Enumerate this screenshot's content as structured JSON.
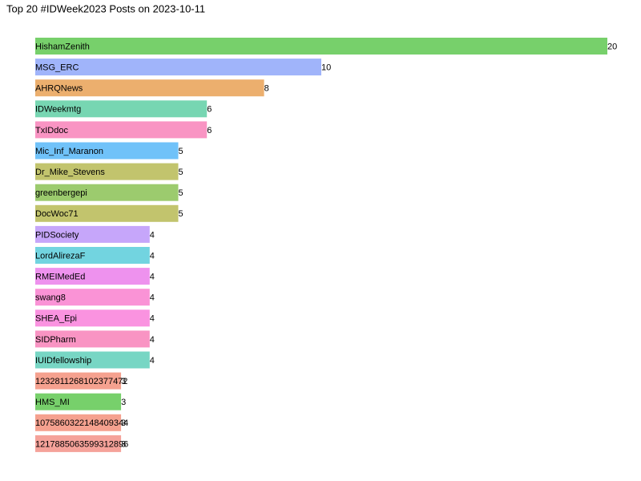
{
  "chart_data": {
    "type": "barh",
    "title": "Top 20 #IDWeek2023 Posts on 2023-10-11",
    "categories": [
      "HishamZenith",
      "MSG_ERC",
      "AHRQNews",
      "IDWeekmtg",
      "TxIDdoc",
      "Mic_Inf_Maranon",
      "Dr_Mike_Stevens",
      "greenbergepi",
      "DocWoc71",
      "PIDSociety",
      "LordAlirezaF",
      "RMEIMedEd",
      "swang8",
      "SHEA_Epi",
      "SIDPharm",
      "IUIDfellowship",
      "1232811268102377472",
      "HMS_MI",
      "1075860322148409344",
      "1217885063599312896"
    ],
    "values": [
      20,
      10,
      8,
      6,
      6,
      5,
      5,
      5,
      5,
      4,
      4,
      4,
      4,
      4,
      4,
      4,
      3,
      3,
      3,
      3
    ],
    "colors": [
      "#77d06b",
      "#a0b4fa",
      "#ecaf6e",
      "#77d6b2",
      "#f994c3",
      "#70c2f9",
      "#c2c46d",
      "#9ccb6e",
      "#c2c46d",
      "#c6a6fa",
      "#72d4e0",
      "#ee92ee",
      "#fa93d6",
      "#fa93e0",
      "#f994c3",
      "#77d6c4",
      "#f5a18f",
      "#77d06b",
      "#f5a18f",
      "#f5a29a"
    ],
    "xlim": [
      0,
      20
    ]
  }
}
